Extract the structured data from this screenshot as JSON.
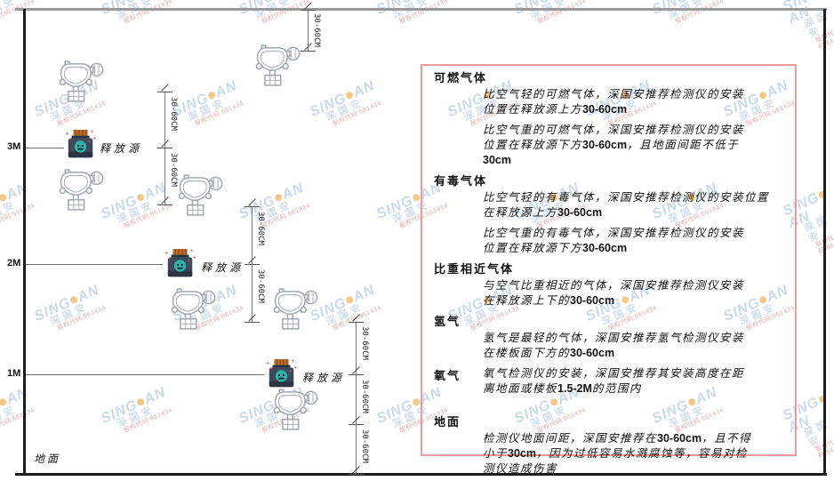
{
  "diagram": {
    "ground_label": "地面",
    "release_source_label": "释放源",
    "dimension_label": "30-60CM",
    "height_labels": {
      "h3": "3M",
      "h2": "2M",
      "h1": "1M"
    }
  },
  "panel": {
    "sections": [
      {
        "heading": "可燃气体",
        "inline": false,
        "gap": "",
        "paragraphs": [
          [
            "比空气轻的可燃气体，深国安推荐检测仪的安装",
            "位置在释放源上方30-60cm"
          ],
          [
            "比空气重的可燃气体，深国安推荐检测仪的安装",
            "位置在释放源下方30-60cm，且地面间距不低于",
            "30cm"
          ]
        ]
      },
      {
        "heading": "有毒气体",
        "inline": false,
        "gap": "",
        "paragraphs": [
          [
            "比空气轻的有毒气体，深国安推荐检测仪的安装位置",
            "在释放源上方30-60cm"
          ],
          [
            "比空气重的有毒气体，深国安推荐检测仪的安装",
            "位置在释放源下方30-60cm"
          ]
        ]
      },
      {
        "heading": "比重相近气体",
        "inline": false,
        "gap": "",
        "paragraphs": [
          [
            "与空气比重相近的气体，深国安推荐检测仪安装",
            "在释放源上下的30-60cm"
          ]
        ]
      },
      {
        "heading": "氢气",
        "inline": false,
        "gap": "",
        "paragraphs": [
          [
            "氢气是最轻的气体，深国安推荐氢气检测仪安装",
            "在楼板面下方的30-60cm"
          ]
        ]
      },
      {
        "heading": "氧气",
        "inline": true,
        "gap": "gap-sm",
        "paragraphs": [
          [
            "氧气检测仪的安装，深国安推荐其安装高度在距",
            "离地面或楼板1.5-2M的范围内"
          ]
        ]
      },
      {
        "heading": "地面",
        "inline": false,
        "gap": "gap-lg",
        "paragraphs": [
          [
            "检测仪地面间距，深国安推荐在30-60cm，且不得",
            "小于30cm，因为过低容易水溅腐蚀等，容易对检",
            "测仪造成伤害"
          ]
        ]
      }
    ]
  },
  "watermark": {
    "brand_left": "SING",
    "brand_right": "AN",
    "company": "深国安",
    "code": "股权代码:661434"
  },
  "colors": {
    "panel_border": "#f29a9a",
    "watermark_blue": "#a6c2e0",
    "watermark_dot_orange": "#f0a43c",
    "watermark_red": "#cd5555",
    "detector_stroke": "#a0a7b0",
    "bottle_body": "#3d4a5e",
    "bottle_cap": "#b9692a",
    "bottle_badge": "#2fb3a8",
    "sparkle_red": "#e05555"
  }
}
